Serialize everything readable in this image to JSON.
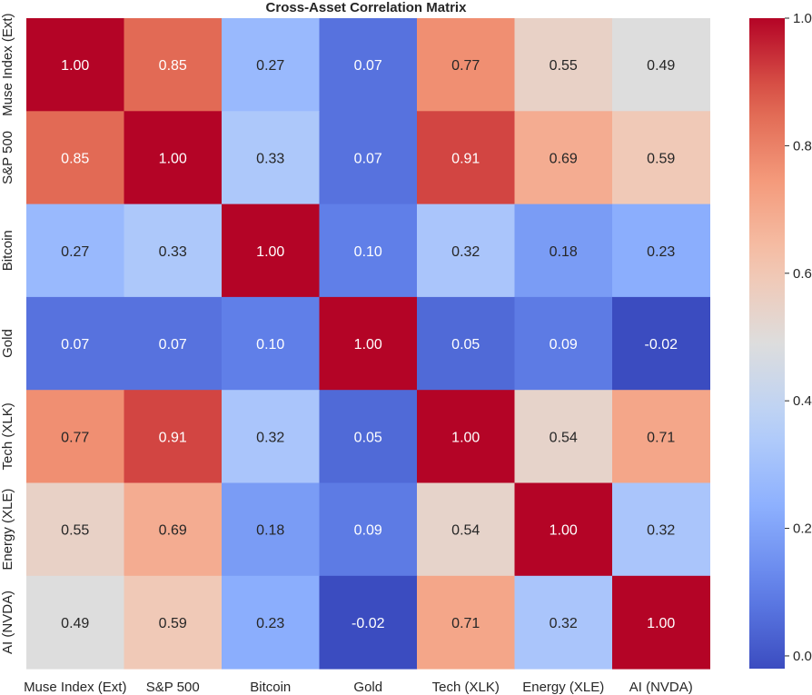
{
  "chart_data": {
    "type": "heatmap",
    "title": "Cross-Asset Correlation Matrix",
    "xlabel": "",
    "ylabel": "",
    "x_labels": [
      "Muse Index (Ext)",
      "S&P 500",
      "Bitcoin",
      "Gold",
      "Tech (XLK)",
      "Energy (XLE)",
      "AI (NVDA)"
    ],
    "y_labels": [
      "Muse Index (Ext)",
      "S&P 500",
      "Bitcoin",
      "Gold",
      "Tech (XLK)",
      "Energy (XLE)",
      "AI (NVDA)"
    ],
    "values": [
      [
        1.0,
        0.85,
        0.27,
        0.07,
        0.77,
        0.55,
        0.49
      ],
      [
        0.85,
        1.0,
        0.33,
        0.07,
        0.91,
        0.69,
        0.59
      ],
      [
        0.27,
        0.33,
        1.0,
        0.1,
        0.32,
        0.18,
        0.23
      ],
      [
        0.07,
        0.07,
        0.1,
        1.0,
        0.05,
        0.09,
        -0.02
      ],
      [
        0.77,
        0.91,
        0.32,
        0.05,
        1.0,
        0.54,
        0.71
      ],
      [
        0.55,
        0.69,
        0.18,
        0.09,
        0.54,
        1.0,
        0.32
      ],
      [
        0.49,
        0.59,
        0.23,
        -0.02,
        0.71,
        0.32,
        1.0
      ]
    ],
    "value_format": "2 decimals",
    "colormap": "coolwarm",
    "vmin": -0.02,
    "vmax": 1.0,
    "colorbar_ticks": [
      "0.0",
      "0.2",
      "0.4",
      "0.6",
      "0.8",
      "1.0"
    ],
    "colorbar_tick_values": [
      0.0,
      0.2,
      0.4,
      0.6,
      0.8,
      1.0
    ],
    "grid": false,
    "legend": "colorbar-right",
    "colors": {
      "low": "#3b4cc0",
      "mid": "#dddddd",
      "high": "#b40426",
      "text": "#262626"
    }
  }
}
